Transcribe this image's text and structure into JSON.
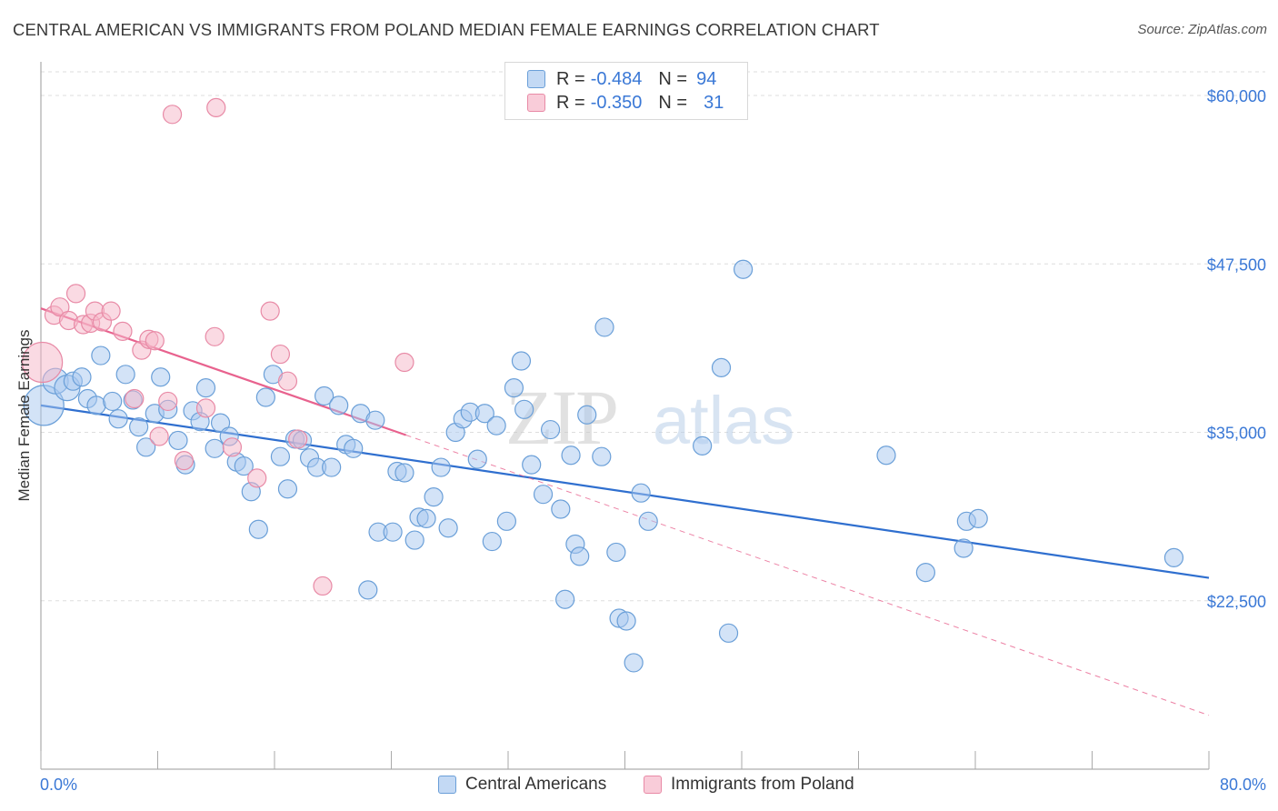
{
  "title": "CENTRAL AMERICAN VS IMMIGRANTS FROM POLAND MEDIAN FEMALE EARNINGS CORRELATION CHART",
  "source": "Source: ZipAtlas.com",
  "watermark": {
    "zip": "ZIP",
    "atlas": "atlas"
  },
  "colors": {
    "blue_fill": "#a8c8f0",
    "blue_stroke": "#6a9fd8",
    "blue_line": "#2f6fcf",
    "pink_fill": "#f6b6c8",
    "pink_stroke": "#e88aa6",
    "pink_line": "#e8628e",
    "tick_label": "#3a78d6",
    "grid": "#dedede"
  },
  "legend_top": {
    "rows": [
      {
        "swatch": "blue",
        "r_label": "R =",
        "r_value": "-0.484",
        "n_label": "N =",
        "n_value": "94"
      },
      {
        "swatch": "pink",
        "r_label": "R =",
        "r_value": "-0.350",
        "n_label": "N =",
        "n_value": "31"
      }
    ]
  },
  "legend_bottom": [
    {
      "swatch": "blue",
      "label": "Central Americans"
    },
    {
      "swatch": "pink",
      "label": "Immigrants from Poland"
    }
  ],
  "chart_data": {
    "type": "scatter",
    "title": "CENTRAL AMERICAN VS IMMIGRANTS FROM POLAND MEDIAN FEMALE EARNINGS CORRELATION CHART",
    "xlabel": "",
    "ylabel": "Median Female Earnings",
    "xlim": [
      0,
      80
    ],
    "ylim": [
      10000,
      62500
    ],
    "x_tick_labels": [
      "0.0%",
      "80.0%"
    ],
    "y_ticks": [
      22500,
      35000,
      47500,
      60000
    ],
    "y_tick_labels": [
      "$22,500",
      "$35,000",
      "$47,500",
      "$60,000"
    ],
    "grid": "horizontal dashed",
    "legend_position": "top-center and bottom",
    "series": [
      {
        "name": "Central Americans",
        "color": "blue",
        "trend": {
          "x0": 0,
          "y0": 37000,
          "x1": 80,
          "y1": 24200
        },
        "points": [
          [
            0.2,
            37000,
            22
          ],
          [
            1.0,
            38800,
            14
          ],
          [
            1.8,
            38300,
            14
          ],
          [
            2.2,
            38800,
            10
          ],
          [
            2.8,
            39100,
            10
          ],
          [
            3.2,
            37500,
            10
          ],
          [
            3.8,
            37000,
            10
          ],
          [
            4.1,
            40700,
            10
          ],
          [
            4.9,
            37300,
            10
          ],
          [
            5.3,
            36000,
            10
          ],
          [
            5.8,
            39300,
            10
          ],
          [
            6.3,
            37400,
            10
          ],
          [
            6.7,
            35400,
            10
          ],
          [
            7.2,
            33900,
            10
          ],
          [
            7.8,
            36400,
            10
          ],
          [
            8.2,
            39100,
            10
          ],
          [
            8.7,
            36700,
            10
          ],
          [
            9.4,
            34400,
            10
          ],
          [
            9.9,
            32600,
            10
          ],
          [
            10.4,
            36600,
            10
          ],
          [
            10.9,
            35800,
            10
          ],
          [
            11.3,
            38300,
            10
          ],
          [
            11.9,
            33800,
            10
          ],
          [
            12.3,
            35700,
            10
          ],
          [
            12.9,
            34700,
            10
          ],
          [
            13.4,
            32800,
            10
          ],
          [
            13.9,
            32500,
            10
          ],
          [
            14.4,
            30600,
            10
          ],
          [
            14.9,
            27800,
            10
          ],
          [
            15.4,
            37600,
            10
          ],
          [
            15.9,
            39300,
            10
          ],
          [
            16.4,
            33200,
            10
          ],
          [
            16.9,
            30800,
            10
          ],
          [
            17.4,
            34500,
            10
          ],
          [
            17.9,
            34400,
            10
          ],
          [
            18.4,
            33100,
            10
          ],
          [
            18.9,
            32400,
            10
          ],
          [
            19.4,
            37700,
            10
          ],
          [
            19.9,
            32400,
            10
          ],
          [
            20.4,
            37000,
            10
          ],
          [
            20.9,
            34100,
            10
          ],
          [
            21.4,
            33800,
            10
          ],
          [
            21.9,
            36400,
            10
          ],
          [
            22.9,
            35900,
            10
          ],
          [
            22.4,
            23300,
            10
          ],
          [
            23.1,
            27600,
            10
          ],
          [
            24.1,
            27600,
            10
          ],
          [
            24.4,
            32100,
            10
          ],
          [
            24.9,
            32000,
            10
          ],
          [
            25.6,
            27000,
            10
          ],
          [
            25.9,
            28700,
            10
          ],
          [
            26.4,
            28600,
            10
          ],
          [
            26.9,
            30200,
            10
          ],
          [
            27.4,
            32400,
            10
          ],
          [
            27.9,
            27900,
            10
          ],
          [
            28.4,
            35000,
            10
          ],
          [
            28.9,
            36000,
            10
          ],
          [
            29.4,
            36500,
            10
          ],
          [
            29.9,
            33000,
            10
          ],
          [
            30.4,
            36400,
            10
          ],
          [
            30.9,
            26900,
            10
          ],
          [
            31.2,
            35500,
            10
          ],
          [
            31.9,
            28400,
            10
          ],
          [
            32.4,
            38300,
            10
          ],
          [
            32.9,
            40300,
            10
          ],
          [
            33.1,
            36700,
            10
          ],
          [
            33.6,
            32600,
            10
          ],
          [
            34.4,
            30400,
            10
          ],
          [
            34.9,
            35200,
            10
          ],
          [
            35.6,
            29300,
            10
          ],
          [
            35.9,
            22600,
            10
          ],
          [
            36.3,
            33300,
            10
          ],
          [
            36.6,
            26700,
            10
          ],
          [
            36.9,
            25800,
            10
          ],
          [
            37.4,
            36300,
            10
          ],
          [
            38.4,
            33200,
            10
          ],
          [
            38.6,
            42800,
            10
          ],
          [
            39.4,
            26100,
            10
          ],
          [
            39.6,
            21200,
            10
          ],
          [
            40.1,
            21000,
            10
          ],
          [
            40.6,
            17900,
            10
          ],
          [
            41.1,
            30500,
            10
          ],
          [
            41.6,
            28400,
            10
          ],
          [
            45.3,
            34000,
            10
          ],
          [
            46.6,
            39800,
            10
          ],
          [
            47.1,
            20100,
            10
          ],
          [
            48.1,
            47100,
            10
          ],
          [
            57.9,
            33300,
            10
          ],
          [
            60.6,
            24600,
            10
          ],
          [
            63.2,
            26400,
            10
          ],
          [
            63.4,
            28400,
            10
          ],
          [
            64.2,
            28600,
            10
          ],
          [
            77.6,
            25700,
            10
          ],
          [
            34.1,
            22300,
            0
          ]
        ]
      },
      {
        "name": "Immigrants from Poland",
        "color": "pink",
        "trend": {
          "x0": 0,
          "y0": 44200,
          "x1": 25,
          "y1": 34800,
          "dash_x1": 80,
          "dash_y1": 14000
        },
        "points": [
          [
            0.1,
            40200,
            22
          ],
          [
            0.9,
            43700,
            10
          ],
          [
            1.3,
            44300,
            10
          ],
          [
            1.9,
            43300,
            10
          ],
          [
            2.4,
            45300,
            10
          ],
          [
            2.9,
            43000,
            10
          ],
          [
            3.4,
            43100,
            10
          ],
          [
            3.7,
            44000,
            10
          ],
          [
            4.2,
            43200,
            10
          ],
          [
            4.8,
            44000,
            10
          ],
          [
            5.6,
            42500,
            10
          ],
          [
            6.4,
            37500,
            10
          ],
          [
            6.9,
            41100,
            10
          ],
          [
            7.4,
            41900,
            10
          ],
          [
            7.8,
            41800,
            10
          ],
          [
            8.1,
            34700,
            10
          ],
          [
            8.7,
            37300,
            10
          ],
          [
            9.0,
            58600,
            10
          ],
          [
            9.8,
            32900,
            10
          ],
          [
            11.3,
            36800,
            10
          ],
          [
            11.9,
            42100,
            10
          ],
          [
            12.0,
            59100,
            10
          ],
          [
            13.1,
            33900,
            10
          ],
          [
            14.8,
            31600,
            10
          ],
          [
            15.7,
            44000,
            10
          ],
          [
            16.4,
            40800,
            10
          ],
          [
            16.9,
            38800,
            10
          ],
          [
            17.6,
            34500,
            10
          ],
          [
            19.3,
            23600,
            10
          ],
          [
            24.9,
            40200,
            10
          ],
          [
            6.5,
            33600,
            0
          ]
        ]
      }
    ]
  }
}
